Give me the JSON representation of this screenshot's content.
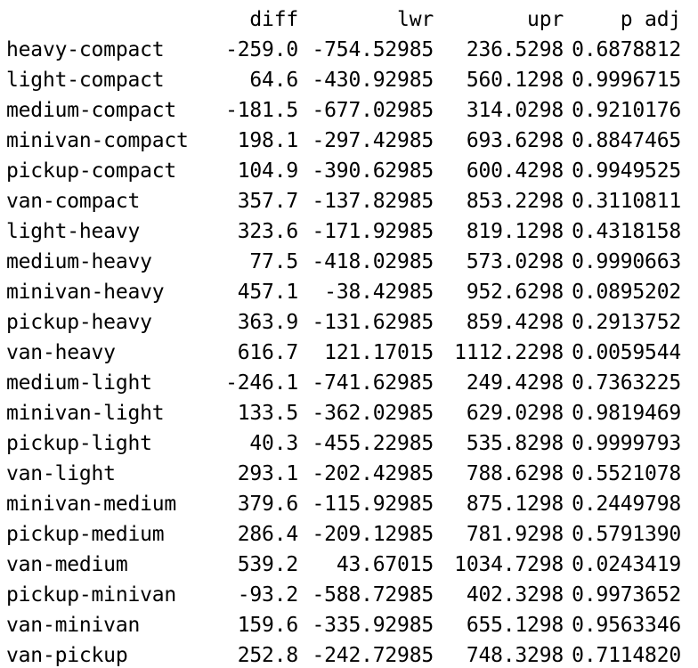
{
  "output": {
    "header": {
      "rowname": "",
      "diff": "diff",
      "lwr": "lwr",
      "upr": "upr",
      "p_adj": "p adj"
    },
    "rows": [
      {
        "comparison": "heavy-compact",
        "diff": "-259.0",
        "lwr": "-754.52985",
        "upr": "236.5298",
        "p_adj": "0.6878812"
      },
      {
        "comparison": "light-compact",
        "diff": "64.6",
        "lwr": "-430.92985",
        "upr": "560.1298",
        "p_adj": "0.9996715"
      },
      {
        "comparison": "medium-compact",
        "diff": "-181.5",
        "lwr": "-677.02985",
        "upr": "314.0298",
        "p_adj": "0.9210176"
      },
      {
        "comparison": "minivan-compact",
        "diff": "198.1",
        "lwr": "-297.42985",
        "upr": "693.6298",
        "p_adj": "0.8847465"
      },
      {
        "comparison": "pickup-compact",
        "diff": "104.9",
        "lwr": "-390.62985",
        "upr": "600.4298",
        "p_adj": "0.9949525"
      },
      {
        "comparison": "van-compact",
        "diff": "357.7",
        "lwr": "-137.82985",
        "upr": "853.2298",
        "p_adj": "0.3110811"
      },
      {
        "comparison": "light-heavy",
        "diff": "323.6",
        "lwr": "-171.92985",
        "upr": "819.1298",
        "p_adj": "0.4318158"
      },
      {
        "comparison": "medium-heavy",
        "diff": "77.5",
        "lwr": "-418.02985",
        "upr": "573.0298",
        "p_adj": "0.9990663"
      },
      {
        "comparison": "minivan-heavy",
        "diff": "457.1",
        "lwr": "-38.42985",
        "upr": "952.6298",
        "p_adj": "0.0895202"
      },
      {
        "comparison": "pickup-heavy",
        "diff": "363.9",
        "lwr": "-131.62985",
        "upr": "859.4298",
        "p_adj": "0.2913752"
      },
      {
        "comparison": "van-heavy",
        "diff": "616.7",
        "lwr": "121.17015",
        "upr": "1112.2298",
        "p_adj": "0.0059544"
      },
      {
        "comparison": "medium-light",
        "diff": "-246.1",
        "lwr": "-741.62985",
        "upr": "249.4298",
        "p_adj": "0.7363225"
      },
      {
        "comparison": "minivan-light",
        "diff": "133.5",
        "lwr": "-362.02985",
        "upr": "629.0298",
        "p_adj": "0.9819469"
      },
      {
        "comparison": "pickup-light",
        "diff": "40.3",
        "lwr": "-455.22985",
        "upr": "535.8298",
        "p_adj": "0.9999793"
      },
      {
        "comparison": "van-light",
        "diff": "293.1",
        "lwr": "-202.42985",
        "upr": "788.6298",
        "p_adj": "0.5521078"
      },
      {
        "comparison": "minivan-medium",
        "diff": "379.6",
        "lwr": "-115.92985",
        "upr": "875.1298",
        "p_adj": "0.2449798"
      },
      {
        "comparison": "pickup-medium",
        "diff": "286.4",
        "lwr": "-209.12985",
        "upr": "781.9298",
        "p_adj": "0.5791390"
      },
      {
        "comparison": "van-medium",
        "diff": "539.2",
        "lwr": "43.67015",
        "upr": "1034.7298",
        "p_adj": "0.0243419"
      },
      {
        "comparison": "pickup-minivan",
        "diff": "-93.2",
        "lwr": "-588.72985",
        "upr": "402.3298",
        "p_adj": "0.9973652"
      },
      {
        "comparison": "van-minivan",
        "diff": "159.6",
        "lwr": "-335.92985",
        "upr": "655.1298",
        "p_adj": "0.9563346"
      },
      {
        "comparison": "van-pickup",
        "diff": "252.8",
        "lwr": "-242.72985",
        "upr": "748.3298",
        "p_adj": "0.7114820"
      }
    ]
  }
}
